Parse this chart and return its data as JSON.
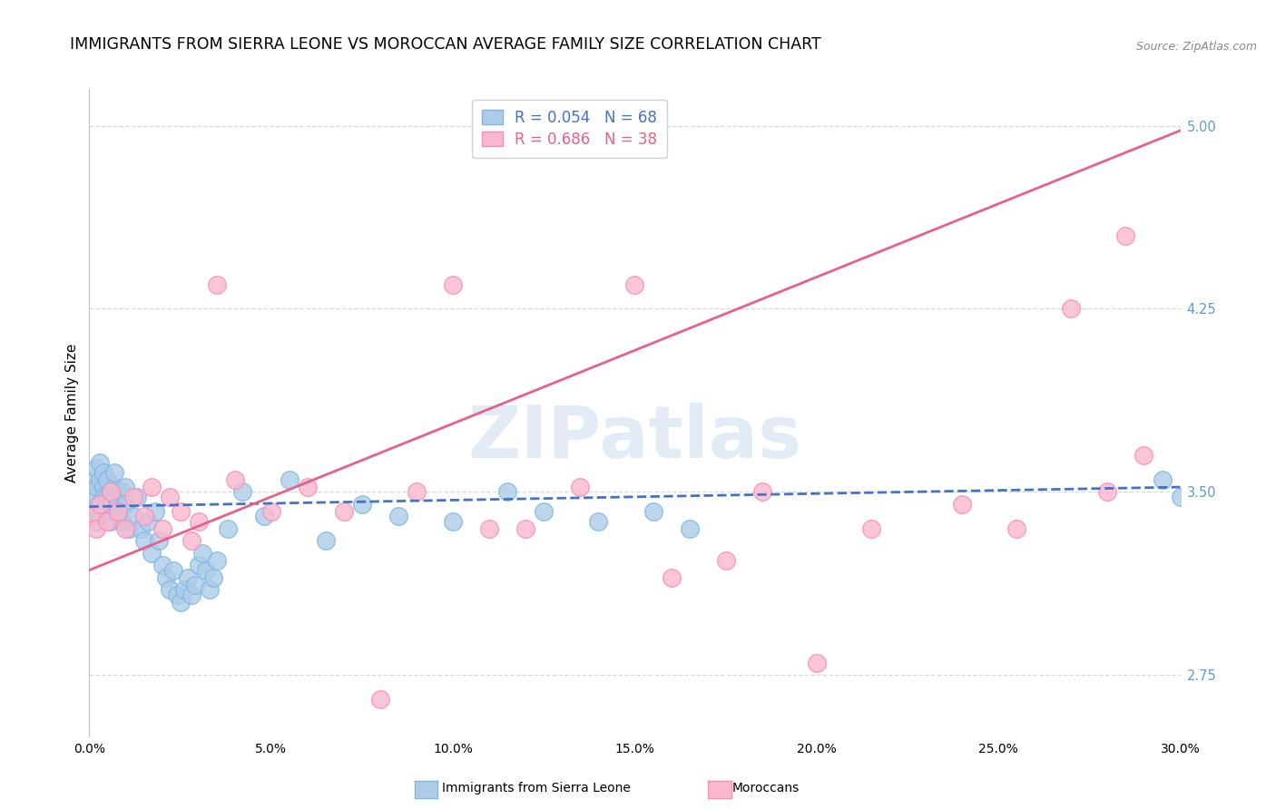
{
  "title": "IMMIGRANTS FROM SIERRA LEONE VS MOROCCAN AVERAGE FAMILY SIZE CORRELATION CHART",
  "source": "Source: ZipAtlas.com",
  "ylabel": "Average Family Size",
  "xlim": [
    0.0,
    0.3
  ],
  "ylim": [
    2.5,
    5.15
  ],
  "yticks": [
    2.75,
    3.5,
    4.25,
    5.0
  ],
  "xticks": [
    0.0,
    0.05,
    0.1,
    0.15,
    0.2,
    0.25,
    0.3
  ],
  "background_color": "#ffffff",
  "watermark": "ZIPatlas",
  "legend_label_1": "R = 0.054   N = 68",
  "legend_label_2": "R = 0.686   N = 38",
  "legend_color_1": "#7ab8e8",
  "legend_color_2": "#f98cb8",
  "series1_color": "#aecce8",
  "series2_color": "#f9b8ce",
  "line1_color": "#4472c4",
  "line2_color": "#e8608a",
  "grid_color": "#d8d8d8",
  "right_yaxis_color": "#5b9bd5",
  "title_fontsize": 12.5,
  "axis_label_fontsize": 11,
  "sierra_leone_x": [
    0.001,
    0.001,
    0.001,
    0.002,
    0.002,
    0.002,
    0.002,
    0.003,
    0.003,
    0.003,
    0.003,
    0.004,
    0.004,
    0.004,
    0.005,
    0.005,
    0.005,
    0.006,
    0.006,
    0.006,
    0.007,
    0.007,
    0.008,
    0.008,
    0.009,
    0.009,
    0.01,
    0.01,
    0.011,
    0.012,
    0.013,
    0.014,
    0.015,
    0.016,
    0.017,
    0.018,
    0.019,
    0.02,
    0.021,
    0.022,
    0.023,
    0.024,
    0.025,
    0.026,
    0.027,
    0.028,
    0.029,
    0.03,
    0.031,
    0.032,
    0.033,
    0.034,
    0.035,
    0.038,
    0.042,
    0.048,
    0.055,
    0.065,
    0.075,
    0.085,
    0.1,
    0.115,
    0.125,
    0.14,
    0.155,
    0.165,
    0.295,
    0.3
  ],
  "sierra_leone_y": [
    3.5,
    3.55,
    3.42,
    3.48,
    3.52,
    3.6,
    3.38,
    3.55,
    3.45,
    3.4,
    3.62,
    3.52,
    3.48,
    3.58,
    3.42,
    3.48,
    3.55,
    3.5,
    3.45,
    3.38,
    3.52,
    3.58,
    3.45,
    3.4,
    3.5,
    3.38,
    3.45,
    3.52,
    3.35,
    3.4,
    3.48,
    3.35,
    3.3,
    3.38,
    3.25,
    3.42,
    3.3,
    3.2,
    3.15,
    3.1,
    3.18,
    3.08,
    3.05,
    3.1,
    3.15,
    3.08,
    3.12,
    3.2,
    3.25,
    3.18,
    3.1,
    3.15,
    3.22,
    3.35,
    3.5,
    3.4,
    3.55,
    3.3,
    3.45,
    3.4,
    3.38,
    3.5,
    3.42,
    3.38,
    3.42,
    3.35,
    3.55,
    3.48
  ],
  "moroccan_x": [
    0.001,
    0.002,
    0.003,
    0.005,
    0.006,
    0.008,
    0.01,
    0.012,
    0.015,
    0.017,
    0.02,
    0.022,
    0.025,
    0.028,
    0.03,
    0.035,
    0.04,
    0.05,
    0.06,
    0.07,
    0.08,
    0.09,
    0.1,
    0.11,
    0.12,
    0.135,
    0.15,
    0.16,
    0.175,
    0.185,
    0.2,
    0.215,
    0.24,
    0.255,
    0.27,
    0.28,
    0.285,
    0.29
  ],
  "moroccan_y": [
    3.4,
    3.35,
    3.45,
    3.38,
    3.5,
    3.42,
    3.35,
    3.48,
    3.4,
    3.52,
    3.35,
    3.48,
    3.42,
    3.3,
    3.38,
    4.35,
    3.55,
    3.42,
    3.52,
    3.42,
    2.65,
    3.5,
    4.35,
    3.35,
    3.35,
    3.52,
    4.35,
    3.15,
    3.22,
    3.5,
    2.8,
    3.35,
    3.45,
    3.35,
    4.25,
    3.5,
    4.55,
    3.65
  ],
  "moroccan_line_x": [
    0.0,
    0.3
  ],
  "moroccan_line_y": [
    3.18,
    4.98
  ],
  "sierra_line_x": [
    0.0,
    0.3
  ],
  "sierra_line_y": [
    3.44,
    3.52
  ]
}
